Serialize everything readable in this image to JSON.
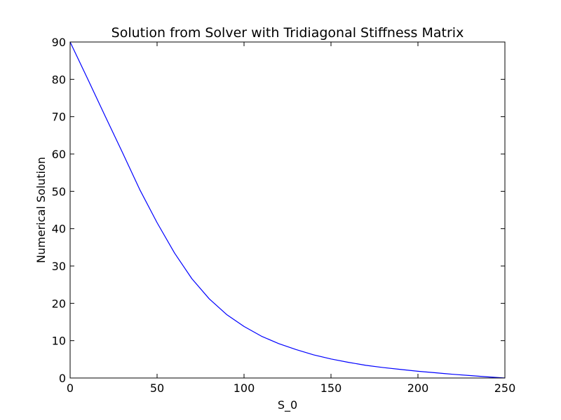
{
  "chart_data": {
    "type": "line",
    "title": "Solution from Solver with Tridiagonal Stiffness Matrix",
    "xlabel": "S_0",
    "ylabel": "Numerical Solution",
    "xlim": [
      0,
      250
    ],
    "ylim": [
      0,
      90
    ],
    "xticks": [
      0,
      50,
      100,
      150,
      200,
      250
    ],
    "yticks": [
      0,
      10,
      20,
      30,
      40,
      50,
      60,
      70,
      80,
      90
    ],
    "grid": false,
    "legend": "none",
    "series": [
      {
        "color": "#0000ff",
        "x": [
          0,
          10,
          20,
          30,
          40,
          50,
          60,
          70,
          80,
          90,
          100,
          110,
          120,
          130,
          140,
          150,
          160,
          170,
          180,
          190,
          200,
          210,
          220,
          230,
          240,
          250
        ],
        "y": [
          90,
          80.2,
          70.3,
          60.5,
          50.5,
          41.6,
          33.5,
          26.6,
          21.2,
          17.0,
          13.8,
          11.2,
          9.2,
          7.6,
          6.2,
          5.1,
          4.2,
          3.4,
          2.8,
          2.3,
          1.8,
          1.4,
          1.0,
          0.65,
          0.3,
          0
        ]
      }
    ]
  }
}
